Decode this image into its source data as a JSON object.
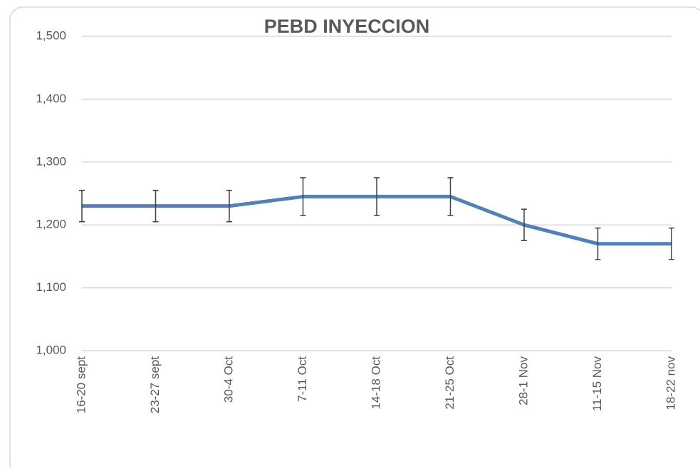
{
  "chart_data": {
    "type": "line",
    "title": "PEBD INYECCION",
    "categories": [
      "16-20 sept",
      "23-27 sept",
      "30-4 Oct",
      "7-11 Oct",
      "14-18 Oct",
      "21-25 Oct",
      "28-1 Nov",
      "11-15 Nov",
      "18-22 nov"
    ],
    "series": [
      {
        "name": "PEBD INYECCION",
        "color": "#4f81bd",
        "values": [
          1230,
          1230,
          1230,
          1245,
          1245,
          1245,
          1200,
          1170,
          1170
        ],
        "errors": [
          25,
          25,
          25,
          30,
          30,
          30,
          25,
          25,
          25
        ]
      }
    ],
    "ylim": [
      1000,
      1500
    ],
    "yticks": [
      {
        "value": 1000,
        "label": "1,000"
      },
      {
        "value": 1100,
        "label": "1,100"
      },
      {
        "value": 1200,
        "label": "1,200"
      },
      {
        "value": 1300,
        "label": "1,300"
      },
      {
        "value": 1400,
        "label": "1,400"
      },
      {
        "value": 1500,
        "label": "1,500"
      }
    ],
    "grid": true
  }
}
